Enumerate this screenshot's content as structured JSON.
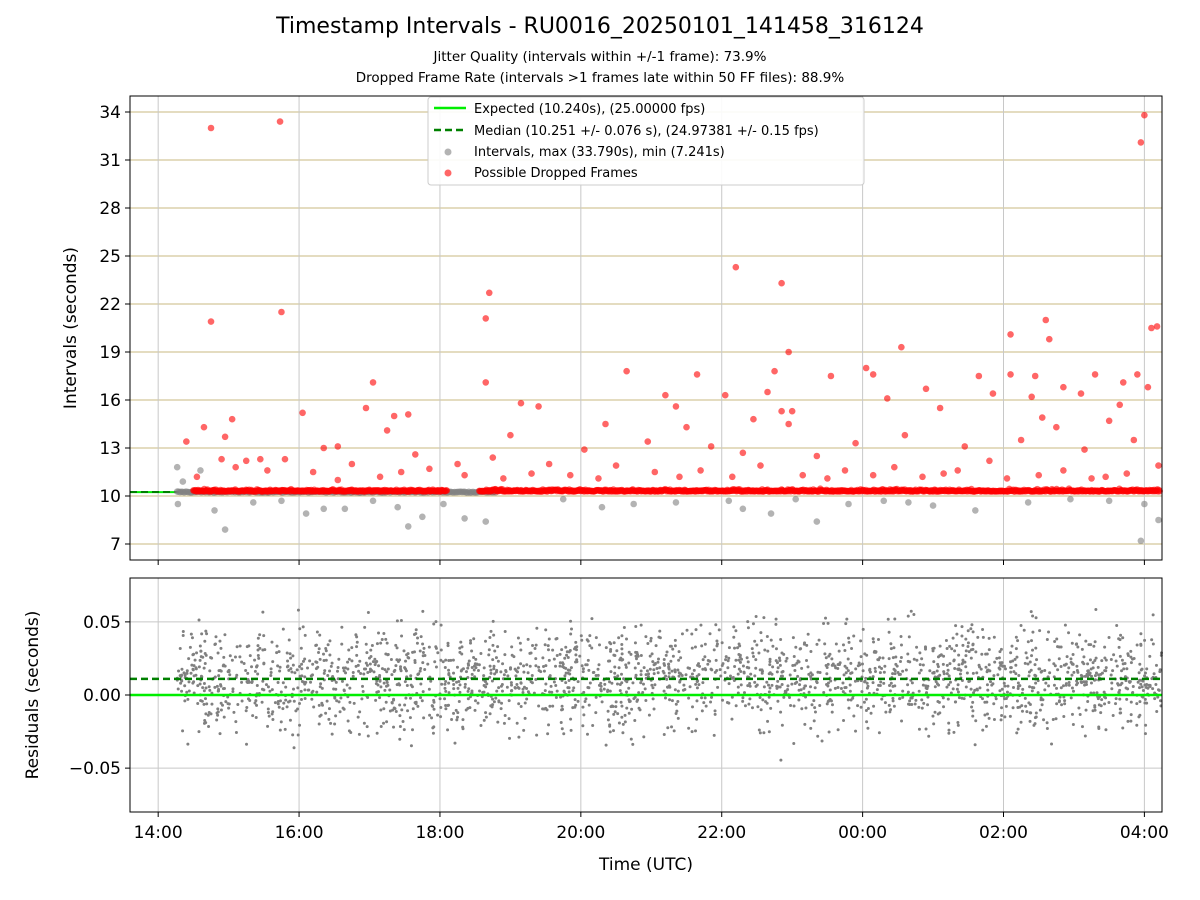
{
  "header": {
    "title": "Timestamp Intervals - RU0016_20250101_141458_316124",
    "subtitle_1": "Jitter Quality (intervals within +/-1 frame): 73.9%",
    "subtitle_2": "Dropped Frame Rate (intervals >1 frames late within 50 FF files): 88.9%"
  },
  "colors": {
    "expected": "#00ee00",
    "median": "#008000",
    "interval": "#808080",
    "dropped": "#ff0000",
    "top_grid": "#d4c89a",
    "grid": "#c8c8c8"
  },
  "chart_data": [
    {
      "type": "scatter",
      "panel": "top",
      "ylabel": "Intervals (seconds)",
      "ylim": [
        6,
        35
      ],
      "yticks": [
        7,
        10,
        13,
        16,
        19,
        22,
        25,
        28,
        31,
        34
      ],
      "xlim_hours": [
        13.6,
        28.25
      ],
      "grid": true,
      "legend_position": "upper center",
      "legend": [
        {
          "label": "Expected (10.240s), (25.00000 fps)",
          "style": "solid-line",
          "color": "#00ee00"
        },
        {
          "label": "Median (10.251 +/- 0.076 s), (24.97381 +/- 0.15 fps)",
          "style": "dashed-line",
          "color": "#008000"
        },
        {
          "label": "Intervals, max (33.790s), min (7.241s)",
          "style": "dot",
          "color": "#808080"
        },
        {
          "label": "Possible Dropped Frames",
          "style": "dot",
          "color": "#ff0000"
        }
      ],
      "lines": {
        "expected": 10.24,
        "median": 10.251
      },
      "series_intervals_points": [
        [
          14.27,
          11.8
        ],
        [
          14.28,
          9.5
        ],
        [
          14.35,
          10.9
        ],
        [
          14.6,
          11.6
        ],
        [
          14.8,
          9.1
        ],
        [
          14.95,
          7.9
        ],
        [
          15.35,
          9.6
        ],
        [
          15.75,
          9.7
        ],
        [
          16.1,
          8.9
        ],
        [
          16.35,
          9.2
        ],
        [
          16.65,
          9.2
        ],
        [
          17.05,
          9.7
        ],
        [
          17.4,
          9.3
        ],
        [
          17.55,
          8.1
        ],
        [
          17.75,
          8.7
        ],
        [
          18.05,
          9.5
        ],
        [
          18.35,
          8.6
        ],
        [
          18.65,
          8.4
        ],
        [
          19.75,
          9.8
        ],
        [
          20.3,
          9.3
        ],
        [
          20.75,
          9.5
        ],
        [
          21.35,
          9.6
        ],
        [
          22.1,
          9.7
        ],
        [
          22.3,
          9.2
        ],
        [
          22.7,
          8.9
        ],
        [
          23.05,
          9.8
        ],
        [
          23.35,
          8.4
        ],
        [
          23.8,
          9.5
        ],
        [
          24.3,
          9.7
        ],
        [
          24.65,
          9.6
        ],
        [
          25.0,
          9.4
        ],
        [
          25.6,
          9.1
        ],
        [
          26.35,
          9.6
        ],
        [
          26.95,
          9.8
        ],
        [
          27.5,
          9.7
        ],
        [
          27.95,
          7.2
        ],
        [
          28.0,
          9.5
        ],
        [
          28.2,
          8.5
        ]
      ],
      "series_dropped_points": [
        [
          14.75,
          33.0
        ],
        [
          15.73,
          33.4
        ],
        [
          28.0,
          33.8
        ],
        [
          27.95,
          32.1
        ],
        [
          15.75,
          21.5
        ],
        [
          14.75,
          20.9
        ],
        [
          18.7,
          22.7
        ],
        [
          18.65,
          21.1
        ],
        [
          22.2,
          24.3
        ],
        [
          22.85,
          23.3
        ],
        [
          24.55,
          19.3
        ],
        [
          26.6,
          21.0
        ],
        [
          26.1,
          20.1
        ],
        [
          26.65,
          19.8
        ],
        [
          28.1,
          20.5
        ],
        [
          28.18,
          20.6
        ],
        [
          22.95,
          19.0
        ],
        [
          25.65,
          17.5
        ],
        [
          26.1,
          17.6
        ],
        [
          26.45,
          17.5
        ],
        [
          27.3,
          17.6
        ],
        [
          27.9,
          17.6
        ],
        [
          24.05,
          18.0
        ],
        [
          24.15,
          17.6
        ],
        [
          22.75,
          17.8
        ],
        [
          20.65,
          17.8
        ],
        [
          21.65,
          17.6
        ],
        [
          17.05,
          17.1
        ],
        [
          18.65,
          17.1
        ],
        [
          28.05,
          16.8
        ],
        [
          26.85,
          16.8
        ],
        [
          26.4,
          16.2
        ],
        [
          15.05,
          14.8
        ],
        [
          16.05,
          15.2
        ],
        [
          16.95,
          15.5
        ],
        [
          17.35,
          15.0
        ],
        [
          17.55,
          15.1
        ],
        [
          19.4,
          15.6
        ],
        [
          19.15,
          15.8
        ],
        [
          20.35,
          14.5
        ],
        [
          21.2,
          16.3
        ],
        [
          21.35,
          15.6
        ],
        [
          22.05,
          16.3
        ],
        [
          22.45,
          14.8
        ],
        [
          22.65,
          16.5
        ],
        [
          22.85,
          15.3
        ],
        [
          23.0,
          15.3
        ],
        [
          23.55,
          17.5
        ],
        [
          24.35,
          16.1
        ],
        [
          24.9,
          16.7
        ],
        [
          25.1,
          15.5
        ],
        [
          25.85,
          16.4
        ],
        [
          26.55,
          14.9
        ],
        [
          27.1,
          16.4
        ],
        [
          27.65,
          15.7
        ],
        [
          27.7,
          17.1
        ],
        [
          14.4,
          13.4
        ],
        [
          14.65,
          14.3
        ],
        [
          14.95,
          13.7
        ],
        [
          15.25,
          12.2
        ],
        [
          16.35,
          13.0
        ],
        [
          16.55,
          13.1
        ],
        [
          17.25,
          14.1
        ],
        [
          17.65,
          12.6
        ],
        [
          18.25,
          12.0
        ],
        [
          18.75,
          12.4
        ],
        [
          19.0,
          13.8
        ],
        [
          19.55,
          12.0
        ],
        [
          20.05,
          12.9
        ],
        [
          20.95,
          13.4
        ],
        [
          21.5,
          14.3
        ],
        [
          21.85,
          13.1
        ],
        [
          22.3,
          12.7
        ],
        [
          22.95,
          14.5
        ],
        [
          23.35,
          12.5
        ],
        [
          23.9,
          13.3
        ],
        [
          24.6,
          13.8
        ],
        [
          25.45,
          13.1
        ],
        [
          25.8,
          12.2
        ],
        [
          26.25,
          13.5
        ],
        [
          26.75,
          14.3
        ],
        [
          27.15,
          12.9
        ],
        [
          27.5,
          14.7
        ],
        [
          27.85,
          13.5
        ],
        [
          15.1,
          11.8
        ],
        [
          15.55,
          11.6
        ],
        [
          15.8,
          12.3
        ],
        [
          16.2,
          11.5
        ],
        [
          16.75,
          12.0
        ],
        [
          17.15,
          11.2
        ],
        [
          17.85,
          11.7
        ],
        [
          18.35,
          11.3
        ],
        [
          19.3,
          11.4
        ],
        [
          19.85,
          11.3
        ],
        [
          20.5,
          11.9
        ],
        [
          21.05,
          11.5
        ],
        [
          21.7,
          11.6
        ],
        [
          22.55,
          11.9
        ],
        [
          23.15,
          11.3
        ],
        [
          23.75,
          11.6
        ],
        [
          24.45,
          11.8
        ],
        [
          24.85,
          11.2
        ],
        [
          25.35,
          11.6
        ],
        [
          26.05,
          11.1
        ],
        [
          26.85,
          11.6
        ],
        [
          27.45,
          11.2
        ],
        [
          27.75,
          11.4
        ],
        [
          28.2,
          11.9
        ],
        [
          14.55,
          11.2
        ],
        [
          14.9,
          12.3
        ],
        [
          15.45,
          12.3
        ],
        [
          16.55,
          11.0
        ],
        [
          17.45,
          11.5
        ],
        [
          18.9,
          11.1
        ],
        [
          20.25,
          11.1
        ],
        [
          21.4,
          11.2
        ],
        [
          22.15,
          11.2
        ],
        [
          23.5,
          11.1
        ],
        [
          24.15,
          11.3
        ],
        [
          25.15,
          11.4
        ],
        [
          26.5,
          11.3
        ],
        [
          27.25,
          11.1
        ]
      ]
    },
    {
      "type": "scatter",
      "panel": "bottom",
      "ylabel": "Residuals (seconds)",
      "xlabel": "Time (UTC)",
      "ylim": [
        -0.08,
        0.08
      ],
      "yticks": [
        -0.05,
        0.0,
        0.05
      ],
      "ytick_labels": [
        "−0.05",
        "0.00",
        "0.05"
      ],
      "xlim_hours": [
        13.6,
        28.25
      ],
      "xticks_hours": [
        14,
        16,
        18,
        20,
        22,
        24,
        26,
        28
      ],
      "xtick_labels": [
        "14:00",
        "16:00",
        "18:00",
        "20:00",
        "22:00",
        "00:00",
        "02:00",
        "04:00"
      ],
      "grid": true,
      "lines": {
        "expected": 0.0,
        "median": 0.011
      },
      "data_start_hours": 14.27,
      "data_end_hours": 28.25,
      "points_count_approx": 4800,
      "residual_std_approx": 0.025
    }
  ]
}
